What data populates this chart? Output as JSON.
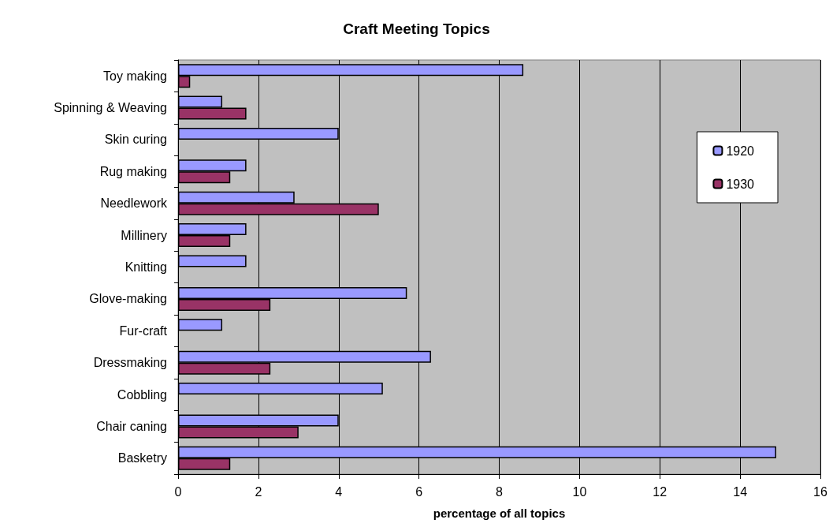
{
  "chart_data": {
    "type": "bar",
    "orientation": "horizontal",
    "title": "Craft Meeting Topics",
    "xlabel": "percentage of all topics",
    "categories": [
      "Toy making",
      "Spinning & Weaving",
      "Skin curing",
      "Rug making",
      "Needlework",
      "Millinery",
      "Knitting",
      "Glove-making",
      "Fur-craft",
      "Dressmaking",
      "Cobbling",
      "Chair caning",
      "Basketry"
    ],
    "series": [
      {
        "name": "1920",
        "color": "#9999ff",
        "values": [
          8.6,
          1.1,
          4.0,
          1.7,
          2.9,
          1.7,
          1.7,
          5.7,
          1.1,
          6.3,
          5.1,
          4.0,
          14.9
        ]
      },
      {
        "name": "1930",
        "color": "#993366",
        "values": [
          0.3,
          1.7,
          null,
          1.3,
          5.0,
          1.3,
          null,
          2.3,
          null,
          2.3,
          null,
          3.0,
          1.3
        ]
      }
    ],
    "xlim": [
      0,
      16
    ],
    "xticks": [
      0,
      2,
      4,
      6,
      8,
      10,
      12,
      14,
      16
    ],
    "grid": "x",
    "legend": "right"
  }
}
